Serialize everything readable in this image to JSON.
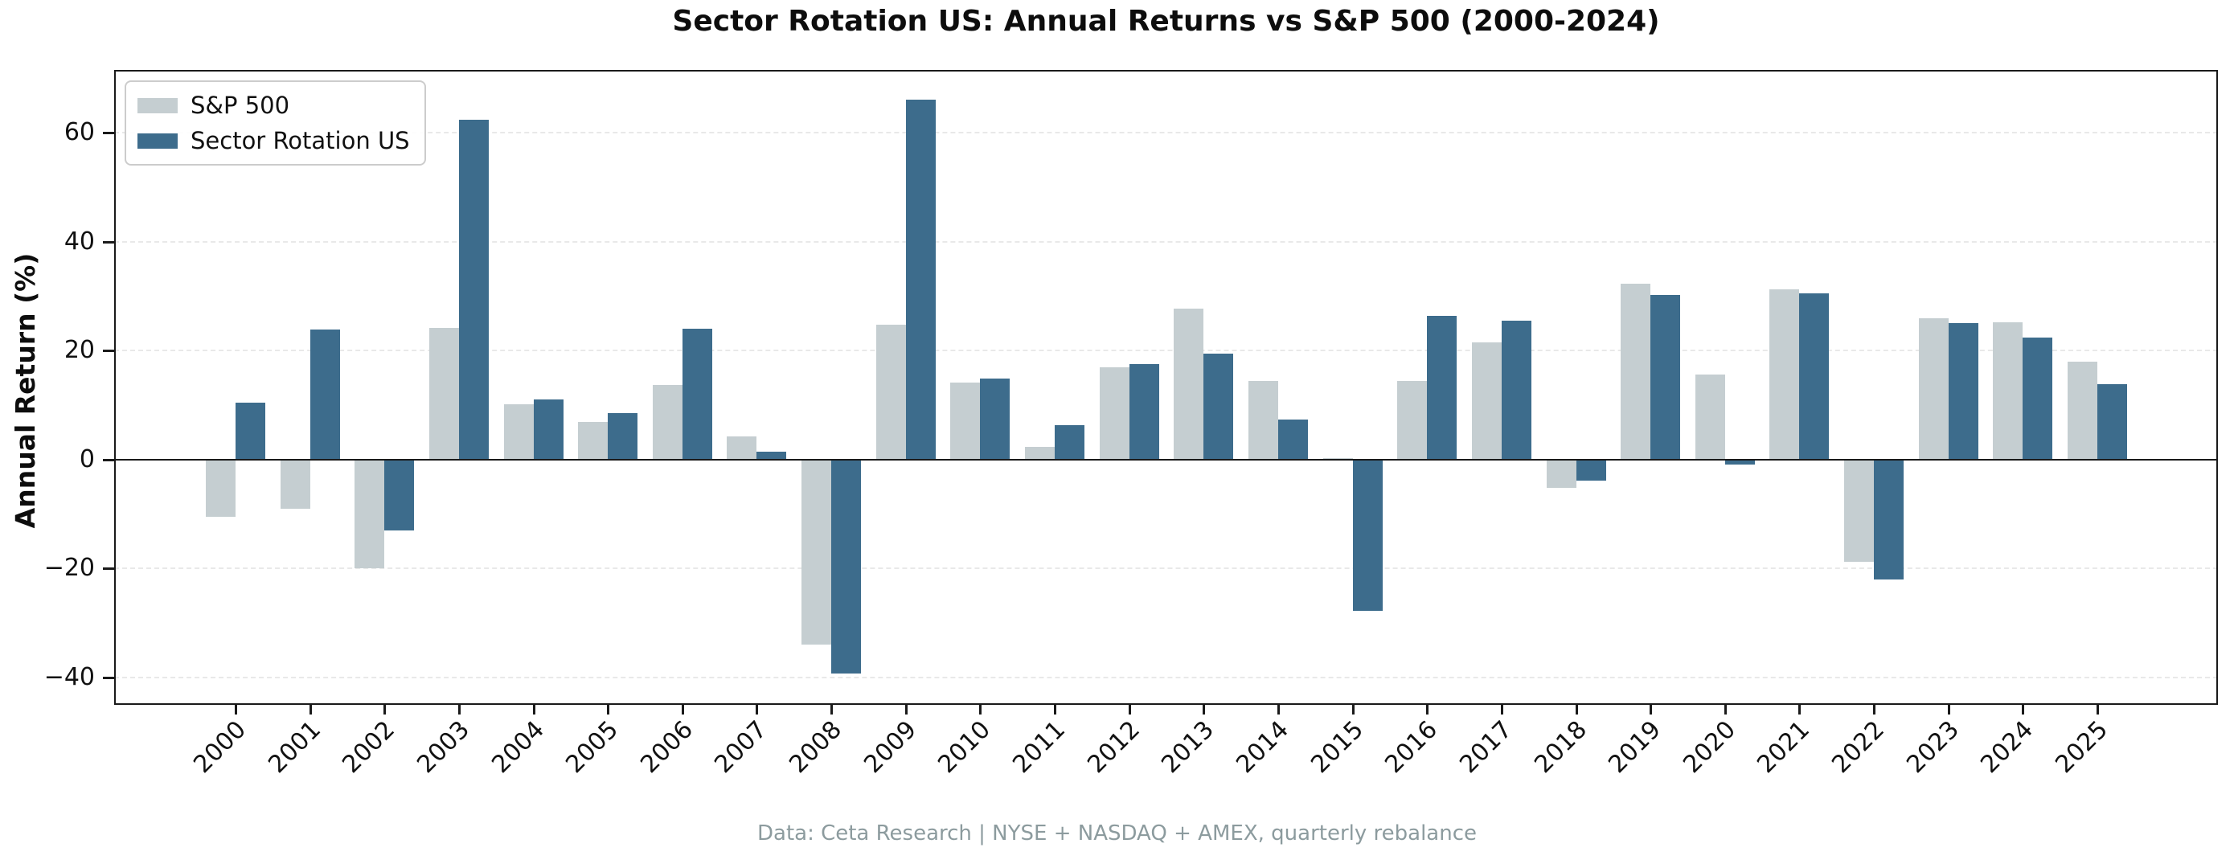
{
  "figure": {
    "caption": "Data: Ceta Research | NYSE + NASDAQ + AMEX, quarterly rebalance"
  },
  "chart_data": {
    "type": "bar",
    "title": "Sector Rotation US: Annual Returns vs S&P 500 (2000-2024)",
    "xlabel": "",
    "ylabel": "Annual Return (%)",
    "grid": "horizontal dashed",
    "legend_position": "upper left",
    "background": "#ffffff",
    "axis_color": "#1a1a1a",
    "zero_line": true,
    "ylim": [
      -45,
      71.5
    ],
    "yticks": [
      60,
      40,
      20,
      0,
      -20,
      -40
    ],
    "categories": [
      "2000",
      "2001",
      "2002",
      "2003",
      "2004",
      "2005",
      "2006",
      "2007",
      "2008",
      "2009",
      "2010",
      "2011",
      "2012",
      "2013",
      "2014",
      "2015",
      "2016",
      "2017",
      "2018",
      "2019",
      "2020",
      "2021",
      "2022",
      "2023",
      "2024",
      "2025"
    ],
    "series": [
      {
        "name": "S&P 500",
        "color": "#c5ced1",
        "values": [
          -10.5,
          -9.0,
          -19.9,
          24.1,
          10.1,
          6.9,
          13.7,
          4.3,
          -34.0,
          24.7,
          14.2,
          2.4,
          17.0,
          27.7,
          14.4,
          0.3,
          14.5,
          21.5,
          -5.2,
          32.3,
          15.6,
          31.2,
          -18.8,
          25.9,
          25.2,
          17.9
        ]
      },
      {
        "name": "Sector Rotation US",
        "color": "#3d6c8c",
        "values": [
          10.4,
          23.9,
          -13.0,
          62.4,
          11.1,
          8.6,
          24.0,
          1.4,
          -39.3,
          66.0,
          14.8,
          6.3,
          17.6,
          19.4,
          7.4,
          -27.8,
          26.4,
          25.5,
          -3.8,
          30.2,
          -0.9,
          30.5,
          -22.0,
          25.1,
          22.4,
          13.8
        ]
      }
    ]
  }
}
